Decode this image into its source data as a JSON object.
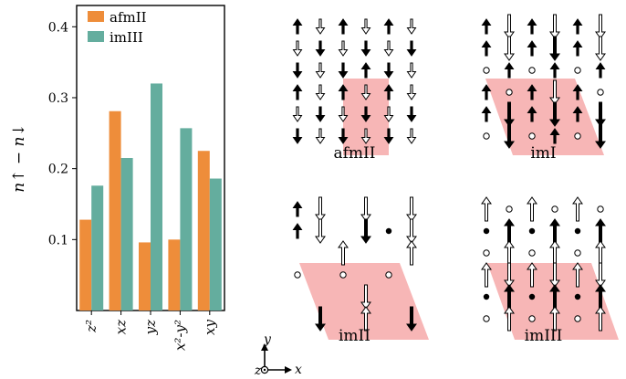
{
  "chart_data": {
    "type": "bar",
    "categories": [
      "z²",
      "xz",
      "yz",
      "x²-y²",
      "xy"
    ],
    "series": [
      {
        "name": "afmII",
        "color": "#ee8d3a",
        "values": [
          0.128,
          0.281,
          0.096,
          0.1,
          0.225
        ]
      },
      {
        "name": "imIII",
        "color": "#64ad9e",
        "values": [
          0.176,
          0.215,
          0.32,
          0.257,
          0.186
        ]
      }
    ],
    "ylabel": "n↑ − n↓",
    "ylim": [
      0.0,
      0.43
    ],
    "yticks": [
      "0.1",
      "0.2",
      "0.3",
      "0.4"
    ],
    "legend_position": "top-left",
    "grid": false
  },
  "panels": [
    {
      "label": "afmII",
      "grid": [
        [
          "F",
          "O",
          "F",
          "O",
          "F",
          "O"
        ],
        [
          "O",
          "D",
          "O",
          "D",
          "O",
          "D"
        ],
        [
          "D",
          "O",
          "D",
          "F",
          "D",
          "O"
        ],
        [
          "F",
          "O",
          "F",
          "O",
          "F",
          "O"
        ],
        [
          "O",
          "D",
          "O",
          "D",
          "O",
          "D"
        ],
        [
          "D",
          "O",
          "D",
          "O",
          "D",
          "O"
        ]
      ]
    },
    {
      "label": "imI",
      "grid": [
        [
          "F",
          "B",
          "f",
          "B",
          "f",
          "B"
        ],
        [
          "f",
          "B",
          "f",
          "D",
          "f",
          "B"
        ],
        [
          "o",
          "f",
          "o",
          "f",
          "o",
          "f"
        ],
        [
          "F",
          "o",
          "f",
          "B",
          "f",
          "o"
        ],
        [
          "f",
          "D",
          "f",
          "D",
          "f",
          "D"
        ],
        [
          "o",
          "D",
          "o",
          "f",
          "o",
          "D"
        ]
      ]
    },
    {
      "label": "imII",
      "grid": [
        [
          "F",
          "B",
          "",
          "B",
          "",
          "B"
        ],
        [
          "f",
          "B",
          "",
          "D",
          "c",
          "B"
        ],
        [
          "",
          "",
          "d",
          "",
          "",
          "d"
        ],
        [
          "o",
          "",
          "o",
          "",
          "o",
          ""
        ],
        [
          "",
          "",
          "",
          "B",
          "",
          ""
        ],
        [
          "",
          "D",
          "",
          "d",
          "",
          "D"
        ]
      ]
    },
    {
      "label": "imIII",
      "grid": [
        [
          "d",
          "o",
          "d",
          "o",
          "d",
          "o"
        ],
        [
          "c",
          "F",
          "c",
          "F",
          "c",
          "F"
        ],
        [
          "o",
          "d",
          "o",
          "d",
          "o",
          "d"
        ],
        [
          "d",
          "B",
          "d",
          "B",
          "d",
          "B"
        ],
        [
          "c",
          "F",
          "c",
          "F",
          "c",
          "F"
        ],
        [
          "o",
          "d",
          "o",
          "d",
          "o",
          "d"
        ]
      ]
    }
  ],
  "axes_labels": {
    "x": "x",
    "y": "y",
    "z": "z"
  }
}
